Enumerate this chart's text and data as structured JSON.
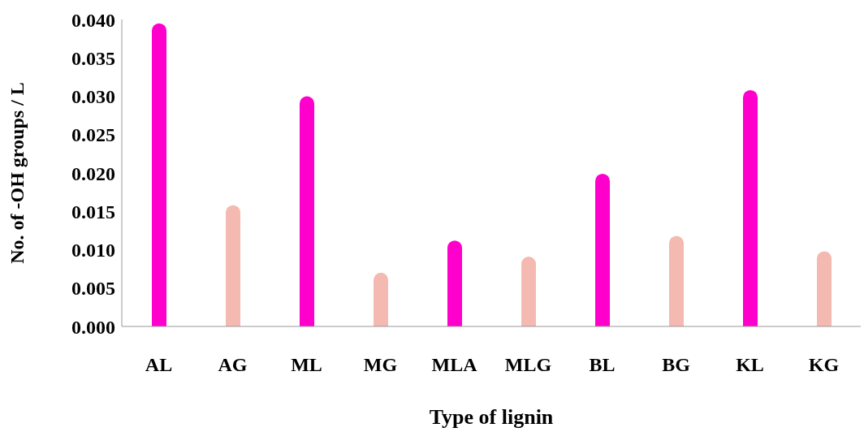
{
  "chart_data": {
    "type": "bar",
    "xlabel": "Type of lignin",
    "ylabel": "No. of -OH groups / L",
    "categories": [
      "AL",
      "AG",
      "ML",
      "MG",
      "MLA",
      "MLG",
      "BL",
      "BG",
      "KL",
      "KG"
    ],
    "values": [
      0.0395,
      0.0158,
      0.03,
      0.007,
      0.0112,
      0.0091,
      0.0199,
      0.0118,
      0.0308,
      0.0098
    ],
    "colors": [
      "#ff00cc",
      "#f4b9b0",
      "#ff00cc",
      "#f4b9b0",
      "#ff00cc",
      "#f4b9b0",
      "#ff00cc",
      "#f4b9b0",
      "#ff00cc",
      "#f4b9b0"
    ],
    "ylim": [
      0,
      0.04
    ],
    "yticks": [
      {
        "value": 0,
        "label": "0.000"
      },
      {
        "value": 0.005,
        "label": "0.005"
      },
      {
        "value": 0.01,
        "label": "0.010"
      },
      {
        "value": 0.015,
        "label": "0.015"
      },
      {
        "value": 0.02,
        "label": "0.020"
      },
      {
        "value": 0.025,
        "label": "0.025"
      },
      {
        "value": 0.03,
        "label": "0.030"
      },
      {
        "value": 0.035,
        "label": "0.035"
      },
      {
        "value": 0.04,
        "label": "0.040"
      }
    ],
    "grid": false,
    "legend": false
  }
}
